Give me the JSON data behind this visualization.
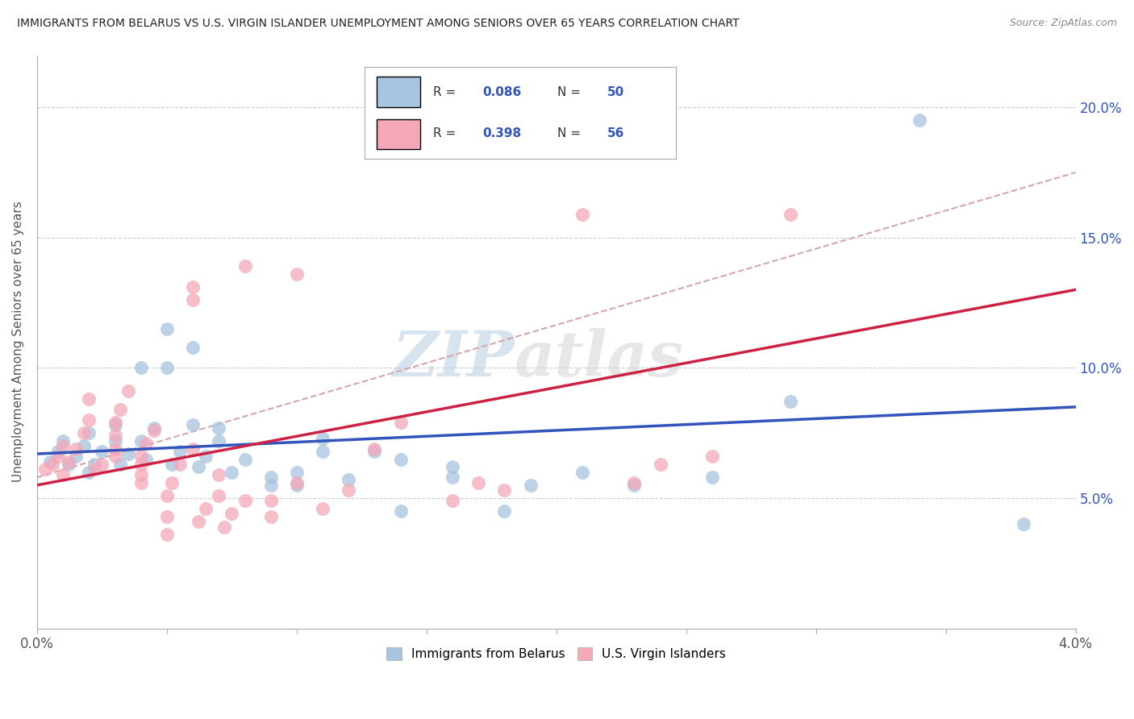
{
  "title": "IMMIGRANTS FROM BELARUS VS U.S. VIRGIN ISLANDER UNEMPLOYMENT AMONG SENIORS OVER 65 YEARS CORRELATION CHART",
  "source": "Source: ZipAtlas.com",
  "ylabel": "Unemployment Among Seniors over 65 years",
  "right_ytick_labels": [
    "5.0%",
    "10.0%",
    "15.0%",
    "20.0%"
  ],
  "ytick_values": [
    0.05,
    0.1,
    0.15,
    0.2
  ],
  "legend_blue_r": "0.086",
  "legend_blue_n": "50",
  "legend_pink_r": "0.398",
  "legend_pink_n": "56",
  "blue_color": "#a8c4e0",
  "pink_color": "#f4a8b8",
  "blue_line_color": "#3355bb",
  "pink_line_color": "#cc2244",
  "dashed_line_color": "#d4a8a8",
  "watermark_zip": "ZIP",
  "watermark_atlas": "atlas",
  "blue_points": [
    [
      0.0005,
      0.064
    ],
    [
      0.0008,
      0.068
    ],
    [
      0.001,
      0.072
    ],
    [
      0.0012,
      0.063
    ],
    [
      0.0015,
      0.066
    ],
    [
      0.0018,
      0.07
    ],
    [
      0.002,
      0.06
    ],
    [
      0.002,
      0.075
    ],
    [
      0.0022,
      0.063
    ],
    [
      0.0025,
      0.068
    ],
    [
      0.003,
      0.072
    ],
    [
      0.003,
      0.078
    ],
    [
      0.0032,
      0.063
    ],
    [
      0.0035,
      0.067
    ],
    [
      0.004,
      0.072
    ],
    [
      0.004,
      0.1
    ],
    [
      0.0042,
      0.065
    ],
    [
      0.0045,
      0.077
    ],
    [
      0.005,
      0.1
    ],
    [
      0.005,
      0.115
    ],
    [
      0.0052,
      0.063
    ],
    [
      0.0055,
      0.068
    ],
    [
      0.006,
      0.078
    ],
    [
      0.006,
      0.108
    ],
    [
      0.0062,
      0.062
    ],
    [
      0.0065,
      0.066
    ],
    [
      0.007,
      0.072
    ],
    [
      0.007,
      0.077
    ],
    [
      0.0075,
      0.06
    ],
    [
      0.008,
      0.065
    ],
    [
      0.009,
      0.055
    ],
    [
      0.009,
      0.058
    ],
    [
      0.01,
      0.055
    ],
    [
      0.01,
      0.06
    ],
    [
      0.011,
      0.068
    ],
    [
      0.011,
      0.073
    ],
    [
      0.012,
      0.057
    ],
    [
      0.013,
      0.068
    ],
    [
      0.014,
      0.045
    ],
    [
      0.014,
      0.065
    ],
    [
      0.016,
      0.058
    ],
    [
      0.016,
      0.062
    ],
    [
      0.018,
      0.045
    ],
    [
      0.019,
      0.055
    ],
    [
      0.021,
      0.06
    ],
    [
      0.023,
      0.055
    ],
    [
      0.026,
      0.058
    ],
    [
      0.029,
      0.087
    ],
    [
      0.034,
      0.195
    ],
    [
      0.038,
      0.04
    ]
  ],
  "pink_points": [
    [
      0.0003,
      0.061
    ],
    [
      0.0006,
      0.063
    ],
    [
      0.0008,
      0.066
    ],
    [
      0.001,
      0.07
    ],
    [
      0.001,
      0.059
    ],
    [
      0.0012,
      0.064
    ],
    [
      0.0015,
      0.069
    ],
    [
      0.0018,
      0.075
    ],
    [
      0.002,
      0.08
    ],
    [
      0.002,
      0.088
    ],
    [
      0.0022,
      0.061
    ],
    [
      0.0025,
      0.063
    ],
    [
      0.003,
      0.066
    ],
    [
      0.003,
      0.069
    ],
    [
      0.003,
      0.074
    ],
    [
      0.003,
      0.079
    ],
    [
      0.0032,
      0.084
    ],
    [
      0.0035,
      0.091
    ],
    [
      0.004,
      0.056
    ],
    [
      0.004,
      0.059
    ],
    [
      0.004,
      0.063
    ],
    [
      0.004,
      0.066
    ],
    [
      0.0042,
      0.071
    ],
    [
      0.0045,
      0.076
    ],
    [
      0.005,
      0.036
    ],
    [
      0.005,
      0.043
    ],
    [
      0.005,
      0.051
    ],
    [
      0.0052,
      0.056
    ],
    [
      0.0055,
      0.063
    ],
    [
      0.006,
      0.069
    ],
    [
      0.006,
      0.126
    ],
    [
      0.006,
      0.131
    ],
    [
      0.0062,
      0.041
    ],
    [
      0.0065,
      0.046
    ],
    [
      0.007,
      0.051
    ],
    [
      0.007,
      0.059
    ],
    [
      0.0072,
      0.039
    ],
    [
      0.0075,
      0.044
    ],
    [
      0.008,
      0.049
    ],
    [
      0.008,
      0.139
    ],
    [
      0.009,
      0.043
    ],
    [
      0.009,
      0.049
    ],
    [
      0.01,
      0.056
    ],
    [
      0.01,
      0.136
    ],
    [
      0.011,
      0.046
    ],
    [
      0.012,
      0.053
    ],
    [
      0.013,
      0.069
    ],
    [
      0.014,
      0.079
    ],
    [
      0.016,
      0.049
    ],
    [
      0.017,
      0.056
    ],
    [
      0.018,
      0.053
    ],
    [
      0.021,
      0.159
    ],
    [
      0.023,
      0.056
    ],
    [
      0.024,
      0.063
    ],
    [
      0.026,
      0.066
    ],
    [
      0.029,
      0.159
    ]
  ],
  "xlim": [
    0.0,
    0.04
  ],
  "ylim": [
    0.0,
    0.22
  ],
  "blue_trend": [
    0.0,
    0.067,
    0.04,
    0.085
  ],
  "pink_trend": [
    0.0,
    0.055,
    0.04,
    0.13
  ],
  "dashed_trend": [
    0.0,
    0.058,
    0.04,
    0.175
  ]
}
